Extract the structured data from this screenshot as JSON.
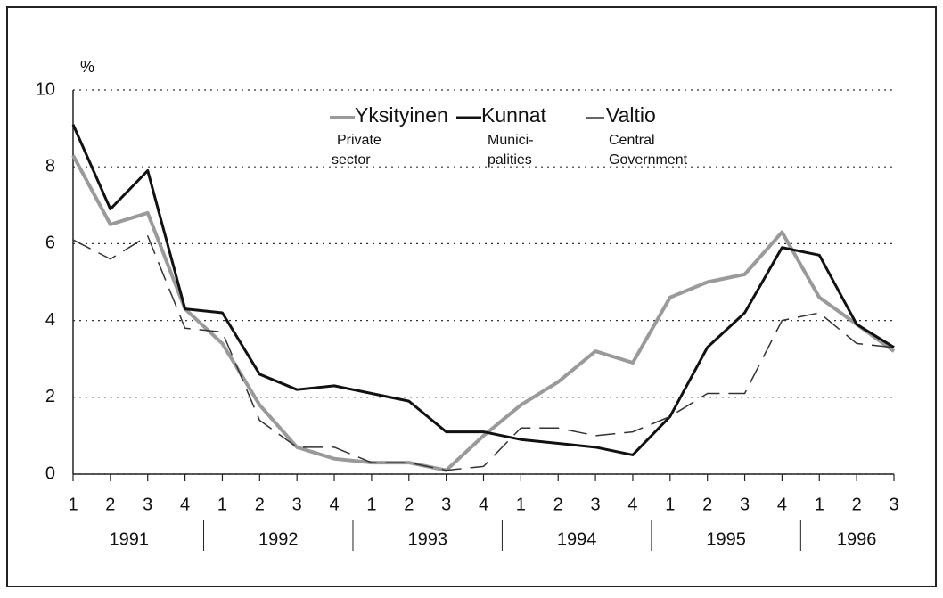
{
  "chart_data": {
    "type": "line",
    "y_unit": "%",
    "categories": [
      "1",
      "2",
      "3",
      "4",
      "1",
      "2",
      "3",
      "4",
      "1",
      "2",
      "3",
      "4",
      "1",
      "2",
      "3",
      "4",
      "1",
      "2",
      "3",
      "4",
      "1",
      "2",
      "3"
    ],
    "year_labels": [
      "1991",
      "1992",
      "1993",
      "1994",
      "1995",
      "1996"
    ],
    "ylim": [
      0,
      10
    ],
    "yticks": [
      0,
      2,
      4,
      6,
      8,
      10
    ],
    "grid": true,
    "series": [
      {
        "name": "Yksityinen",
        "sublabel": [
          "Private",
          "sector"
        ],
        "color": "#9a9a9a",
        "dashed": false,
        "values": [
          8.3,
          6.5,
          6.8,
          4.3,
          3.4,
          1.8,
          0.7,
          0.4,
          0.3,
          0.3,
          0.1,
          1.0,
          1.8,
          2.4,
          3.2,
          2.9,
          4.6,
          5.0,
          5.2,
          6.3,
          4.6,
          3.9,
          3.2
        ]
      },
      {
        "name": "Kunnat",
        "sublabel": [
          "Munici-",
          "palities"
        ],
        "color": "#111111",
        "dashed": false,
        "values": [
          9.1,
          6.9,
          7.9,
          4.3,
          4.2,
          2.6,
          2.2,
          2.3,
          2.1,
          1.9,
          1.1,
          1.1,
          0.9,
          0.8,
          0.7,
          0.5,
          1.5,
          3.3,
          4.2,
          5.9,
          5.7,
          3.9,
          3.3
        ]
      },
      {
        "name": "Valtio",
        "sublabel": [
          "Central",
          "Government"
        ],
        "color": "#333333",
        "dashed": true,
        "values": [
          6.1,
          5.6,
          6.2,
          3.8,
          3.7,
          1.4,
          0.7,
          0.7,
          0.3,
          0.3,
          0.1,
          0.2,
          1.2,
          1.2,
          1.0,
          1.1,
          1.5,
          2.1,
          2.1,
          4.0,
          4.2,
          3.4,
          3.3
        ]
      }
    ]
  }
}
